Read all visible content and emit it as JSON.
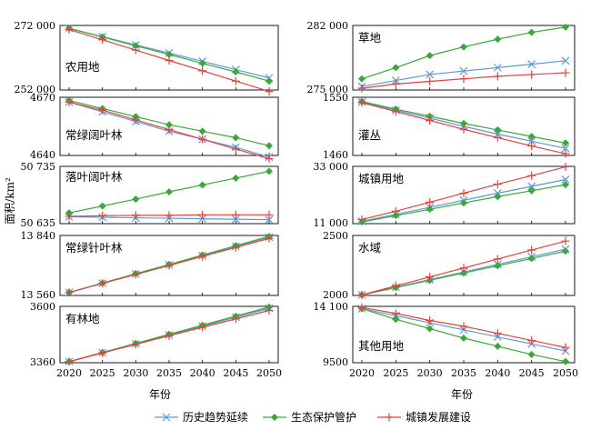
{
  "chart_data": {
    "type": "line",
    "ylabel": "面积/km²",
    "xlabel": "年份",
    "x": [
      2020,
      2025,
      2030,
      2035,
      2040,
      2045,
      2050
    ],
    "legend": {
      "placement": "bottom-center",
      "entries": [
        {
          "label": "历史趋势延续",
          "color": "#5b9bd5",
          "marker": "x"
        },
        {
          "label": "生态保护管护",
          "color": "#3aa83a",
          "marker": "diamond"
        },
        {
          "label": "城镇发展建设",
          "color": "#e8413c",
          "marker": "plus"
        }
      ]
    },
    "panels": [
      {
        "title": "农用地",
        "yticks": [
          "272 000",
          "252 000"
        ],
        "ylim": [
          250500,
          273000
        ],
        "series": [
          {
            "name": "历史趋势延续",
            "values": [
              272000,
              269100,
              266200,
              263400,
              260500,
              257600,
              254700
            ]
          },
          {
            "name": "生态保护管护",
            "values": [
              272000,
              269000,
              265900,
              262900,
              259800,
              256800,
              253600
            ]
          },
          {
            "name": "城镇发展建设",
            "values": [
              271600,
              268000,
              264400,
              260800,
              257200,
              253600,
              250000
            ]
          }
        ]
      },
      {
        "title": "草地",
        "yticks": [
          "282 000",
          "275 000"
        ],
        "ylim": [
          274800,
          282300
        ],
        "series": [
          {
            "name": "历史趋势延续",
            "values": [
              275200,
              275900,
              276600,
              277000,
              277400,
              277800,
              278200
            ]
          },
          {
            "name": "生态保护管护",
            "values": [
              276100,
              277400,
              278800,
              279800,
              280700,
              281500,
              282100
            ]
          },
          {
            "name": "城镇发展建设",
            "values": [
              275000,
              275500,
              275800,
              276100,
              276400,
              276600,
              276800
            ]
          }
        ]
      },
      {
        "title": "常绿阔叶林",
        "yticks": [
          "4670",
          "4640"
        ],
        "ylim": [
          4635,
          4671
        ],
        "series": [
          {
            "name": "历史趋势延续",
            "values": [
              4668,
              4662,
              4656,
              4650,
              4645,
              4640,
              4634
            ]
          },
          {
            "name": "生态保护管护",
            "values": [
              4669,
              4664,
              4659,
              4654,
              4650,
              4646,
              4641
            ]
          },
          {
            "name": "城镇发展建设",
            "values": [
              4668,
              4663,
              4657,
              4651,
              4645,
              4639,
              4633
            ]
          }
        ]
      },
      {
        "title": "灌丛",
        "yticks": [
          "1550",
          "1460"
        ],
        "ylim": [
          1455,
          1553
        ],
        "series": [
          {
            "name": "历史趋势延续",
            "values": [
              1545,
              1531,
              1518,
              1504,
              1491,
              1479,
              1467
            ]
          },
          {
            "name": "生态保护管护",
            "values": [
              1546,
              1533,
              1521,
              1509,
              1498,
              1487,
              1476
            ]
          },
          {
            "name": "城镇发展建设",
            "values": [
              1544,
              1529,
              1514,
              1499,
              1485,
              1471,
              1458
            ]
          }
        ]
      },
      {
        "title": "落叶阔叶林",
        "yticks": [
          "50 735",
          "50 635"
        ],
        "ylim": [
          50628,
          50745
        ],
        "series": [
          {
            "name": "历史趋势延续",
            "values": [
              50642,
              50641,
              50640,
              50639,
              50638,
              50637,
              50636
            ]
          },
          {
            "name": "生态保护管护",
            "values": [
              50650,
              50664,
              50678,
              50693,
              50707,
              50721,
              50735
            ]
          },
          {
            "name": "城镇发展建设",
            "values": [
              50643,
              50644,
              50645,
              50645,
              50646,
              50646,
              50646
            ]
          }
        ]
      },
      {
        "title": "城镇用地",
        "yticks": [
          "33 000",
          "11 000"
        ],
        "ylim": [
          10500,
          34000
        ],
        "series": [
          {
            "name": "历史趋势延续",
            "values": [
              11500,
              14300,
              17200,
              20100,
              23000,
              25800,
              28600
            ]
          },
          {
            "name": "生态保护管护",
            "values": [
              11200,
              13800,
              16400,
              19000,
              21600,
              24000,
              26500
            ]
          },
          {
            "name": "城镇发展建设",
            "values": [
              12200,
              15600,
              19300,
              23000,
              26700,
              30200,
              33800
            ]
          }
        ]
      },
      {
        "title": "常绿针叶林",
        "yticks": [
          "13 840",
          "13 560"
        ],
        "ylim": [
          13545,
          13845
        ],
        "series": [
          {
            "name": "历史趋势延续",
            "values": [
              13560,
              13606,
              13652,
              13698,
              13744,
              13790,
              13836
            ]
          },
          {
            "name": "生态保护管护",
            "values": [
              13560,
              13607,
              13654,
              13700,
              13747,
              13794,
              13840
            ]
          },
          {
            "name": "城镇发展建设",
            "values": [
              13560,
              13605,
              13650,
              13695,
              13740,
              13785,
              13830
            ]
          }
        ]
      },
      {
        "title": "水域",
        "yticks": [
          "2500",
          "2000"
        ],
        "ylim": [
          1995,
          2530
        ],
        "series": [
          {
            "name": "历史趋势延续",
            "values": [
              2000,
              2068,
              2136,
              2204,
              2272,
              2340,
              2408
            ]
          },
          {
            "name": "生态保护管护",
            "values": [
              2000,
              2065,
              2130,
              2195,
              2260,
              2325,
              2390
            ]
          },
          {
            "name": "城镇发展建设",
            "values": [
              2000,
              2080,
              2160,
              2240,
              2320,
              2400,
              2480
            ]
          }
        ]
      },
      {
        "title": "有林地",
        "yticks": [
          "3600",
          "3360"
        ],
        "ylim": [
          3355,
          3603
        ],
        "series": [
          {
            "name": "历史趋势延续",
            "values": [
              3360,
              3399,
              3438,
              3477,
              3516,
              3555,
              3594
            ]
          },
          {
            "name": "生态保护管护",
            "values": [
              3360,
              3400,
              3440,
              3480,
              3520,
              3560,
              3600
            ]
          },
          {
            "name": "城镇发展建设",
            "values": [
              3360,
              3398,
              3436,
              3474,
              3511,
              3548,
              3585
            ]
          }
        ]
      },
      {
        "title": "其他用地",
        "yticks": [
          "14 100",
          "9500"
        ],
        "ylim": [
          9400,
          14200
        ],
        "series": [
          {
            "name": "历史趋势延续",
            "values": [
              14000,
              13400,
              12800,
              12200,
              11600,
              11000,
              10400
            ]
          },
          {
            "name": "生态保护管护",
            "values": [
              14000,
              13100,
              12300,
              11500,
              10800,
              10100,
              9500
            ]
          },
          {
            "name": "城镇发展建设",
            "values": [
              14100,
              13600,
              13000,
              12500,
              11900,
              11300,
              10700
            ]
          }
        ]
      }
    ]
  }
}
